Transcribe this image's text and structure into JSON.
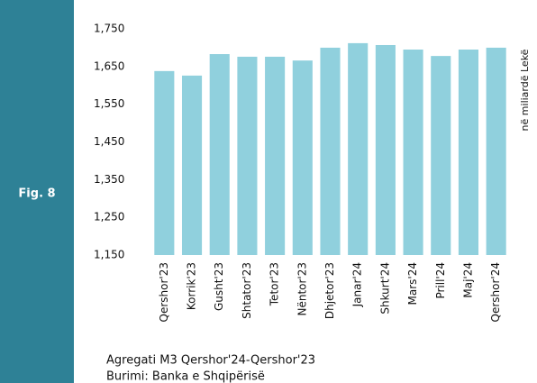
{
  "fig_label": "Fig. 8",
  "chart_data": {
    "type": "bar",
    "categories": [
      "Qershor'23",
      "Korrik'23",
      "Gusht'23",
      "Shtator'23",
      "Tetor'23",
      "Nëntor'23",
      "Dhjetor'23",
      "Janar'24",
      "Shkurt'24",
      "Mars'24",
      "Prill'24",
      "Maj'24",
      "Qershor'24"
    ],
    "values": [
      1638,
      1626,
      1683,
      1676,
      1676,
      1666,
      1700,
      1712,
      1707,
      1695,
      1678,
      1695,
      1700
    ],
    "color": "#90d0dd",
    "ylabel": "në miliardë Lekë",
    "ylim": [
      1150,
      1750
    ],
    "yticks": [
      {
        "value": 1150,
        "label": "1,150"
      },
      {
        "value": 1250,
        "label": "1,250"
      },
      {
        "value": 1350,
        "label": "1,350"
      },
      {
        "value": 1450,
        "label": "1,450"
      },
      {
        "value": 1550,
        "label": "1,550"
      },
      {
        "value": 1650,
        "label": "1,650"
      },
      {
        "value": 1750,
        "label": "1,750"
      }
    ],
    "grid": false
  },
  "caption": "Agregati M3 Qershor'24-Qershor'23",
  "source": "Burimi: Banka e Shqipërisë"
}
